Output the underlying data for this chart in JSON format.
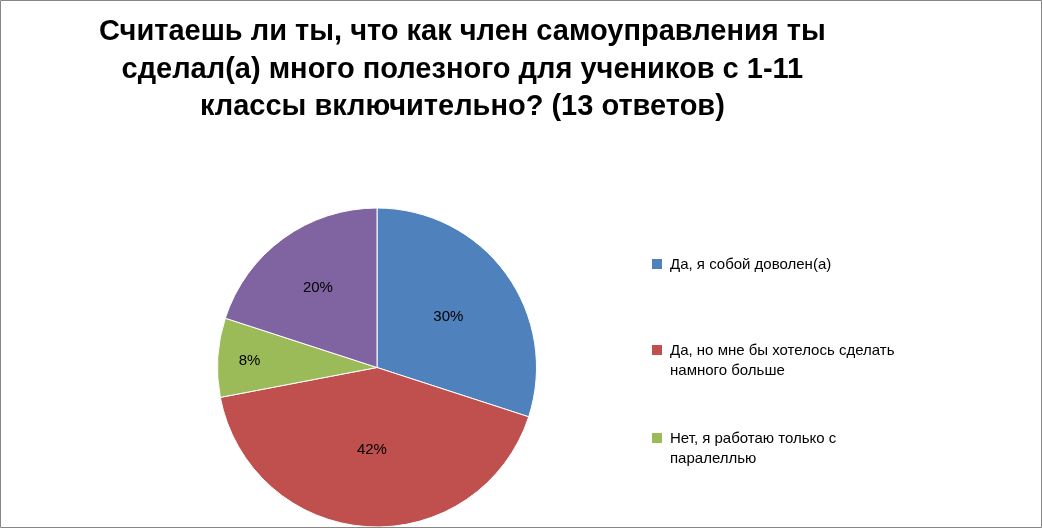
{
  "chart_data": {
    "type": "pie",
    "title": "Считаешь ли ты, что как член самоуправления ты\nсделал(а) много полезного для учеников с 1-11\nклассы включительно? (13 ответов)",
    "categories": [
      "Да, я собой доволен(а)",
      "Да, но мне бы хотелось сделать\nнамного больше",
      "Нет, я работаю только с\nпаралеллью",
      null
    ],
    "values": [
      30,
      42,
      8,
      20
    ],
    "value_labels": [
      "30%",
      "42%",
      "8%",
      "20%"
    ],
    "colors": [
      "#4f81bd",
      "#c0504d",
      "#9bbb59",
      "#8064a2"
    ],
    "legend": "right"
  }
}
